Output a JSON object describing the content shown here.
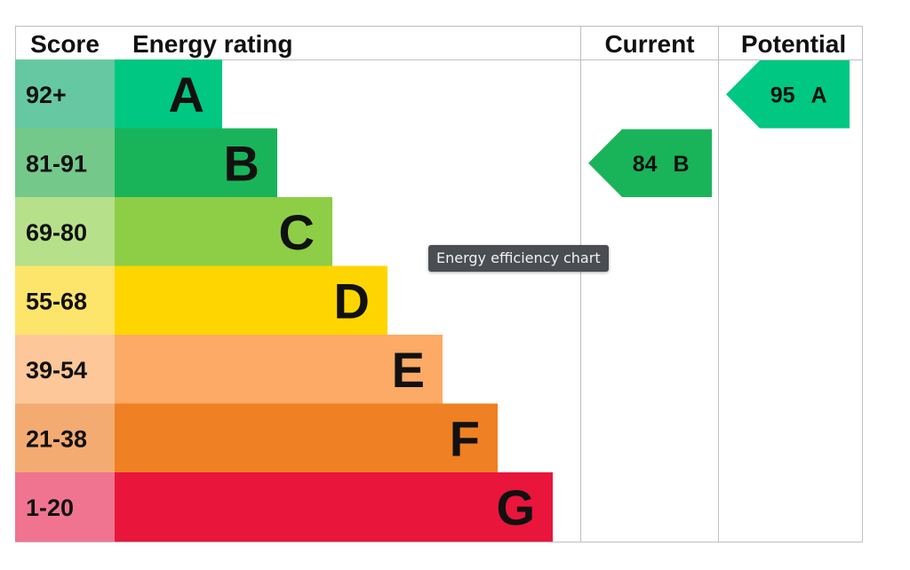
{
  "chart_data": {
    "type": "bar",
    "headers": {
      "score": "Score",
      "rating": "Energy rating",
      "current": "Current",
      "potential": "Potential"
    },
    "bands": [
      {
        "score": "92+",
        "letter": "A",
        "color": "#00c781",
        "score_bg": "#66c8a2"
      },
      {
        "score": "81-91",
        "letter": "B",
        "color": "#19b459",
        "score_bg": "#74c98a"
      },
      {
        "score": "69-80",
        "letter": "C",
        "color": "#8dce46",
        "score_bg": "#b7e08a"
      },
      {
        "score": "55-68",
        "letter": "D",
        "color": "#ffd500",
        "score_bg": "#fde46a"
      },
      {
        "score": "39-54",
        "letter": "E",
        "color": "#fcaa65",
        "score_bg": "#fdc79a"
      },
      {
        "score": "21-38",
        "letter": "F",
        "color": "#ef8023",
        "score_bg": "#f4ab72"
      },
      {
        "score": "1-20",
        "letter": "G",
        "color": "#e9153b",
        "score_bg": "#f07490"
      }
    ],
    "current": {
      "value": 84,
      "letter": "B",
      "color": "#19b459"
    },
    "potential": {
      "value": 95,
      "letter": "A",
      "color": "#00c781"
    }
  },
  "tooltip": "Energy efficiency chart"
}
